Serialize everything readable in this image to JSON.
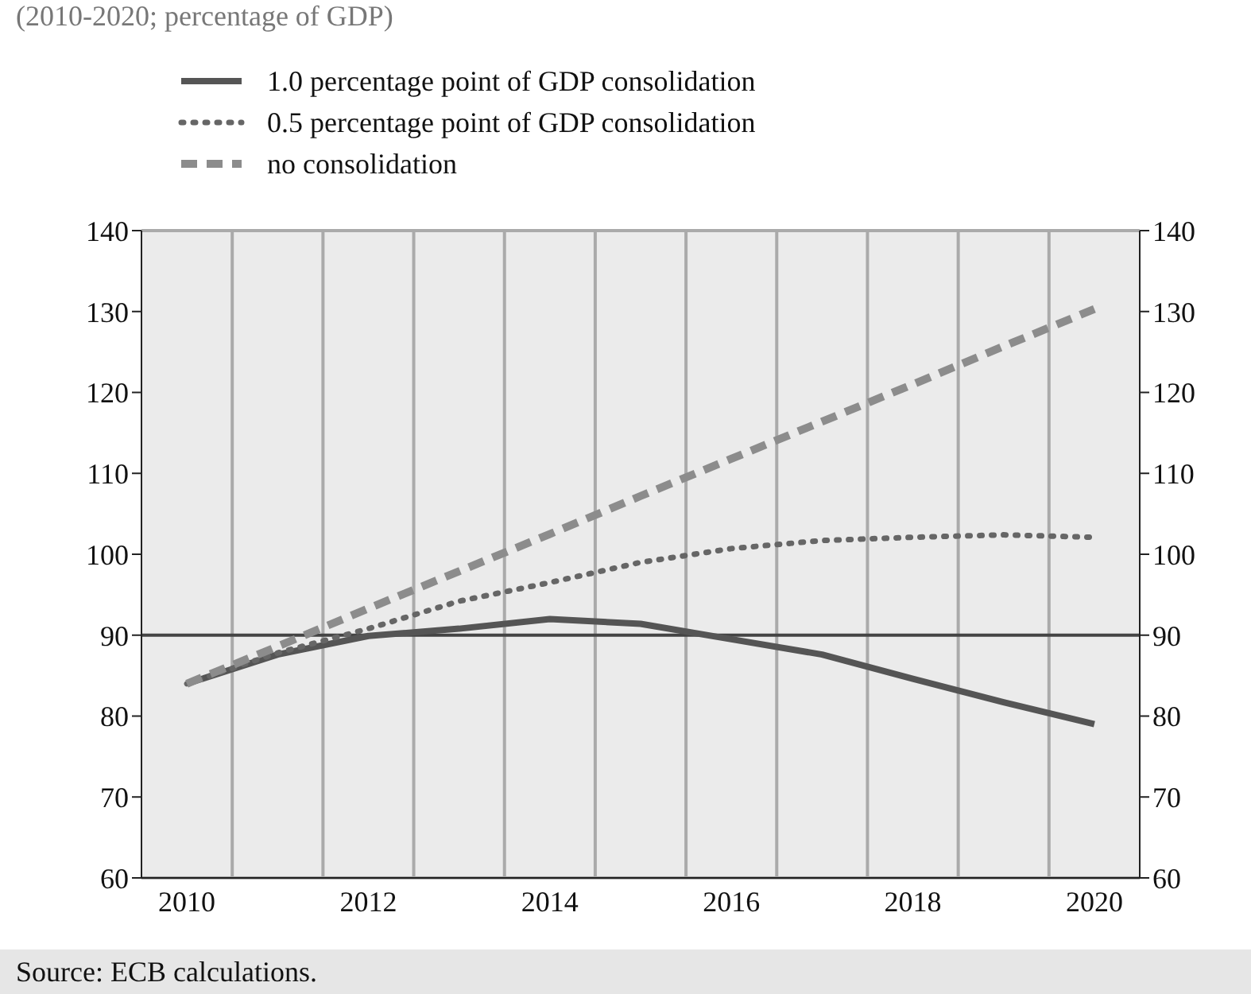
{
  "chart_data": {
    "type": "line",
    "subtitle": "(2010-2020; percentage of GDP)",
    "categories": [
      "2010",
      null,
      "2012",
      null,
      "2014",
      null,
      "2016",
      null,
      "2018",
      null,
      "2020"
    ],
    "series": [
      {
        "name": "1.0 percentage point of GDP consolidation",
        "color": "#555555",
        "line_style": "solid",
        "values": [
          84.0,
          87.6,
          89.9,
          90.8,
          92.0,
          91.4,
          89.5,
          87.6,
          84.6,
          81.7,
          79.0
        ]
      },
      {
        "name": "0.5 percentage point of GDP consolidation",
        "color": "#666666",
        "line_style": "dotted",
        "values": [
          84.0,
          87.8,
          90.8,
          94.2,
          96.5,
          99.0,
          100.7,
          101.7,
          102.1,
          102.4,
          102.1
        ]
      },
      {
        "name": "no consolidation",
        "color": "#8c8c8c",
        "line_style": "dashed",
        "values": [
          84.0,
          88.6,
          93.3,
          97.9,
          102.5,
          107.2,
          111.8,
          116.4,
          121.0,
          125.7,
          130.3
        ]
      }
    ],
    "ylim": [
      60,
      140
    ],
    "yticks": [
      60,
      70,
      80,
      90,
      100,
      110,
      120,
      130,
      140
    ],
    "y2lim": [
      60,
      140
    ],
    "y2ticks": [
      60,
      70,
      80,
      90,
      100,
      110,
      120,
      130,
      140
    ],
    "ref_lines": [
      {
        "axis": "y",
        "value": 90,
        "color": "#444444",
        "line_style": "solid"
      }
    ],
    "grid": true,
    "legend": "top left",
    "marker": "none",
    "annotations": [
      "Source: ECB calculations."
    ]
  }
}
